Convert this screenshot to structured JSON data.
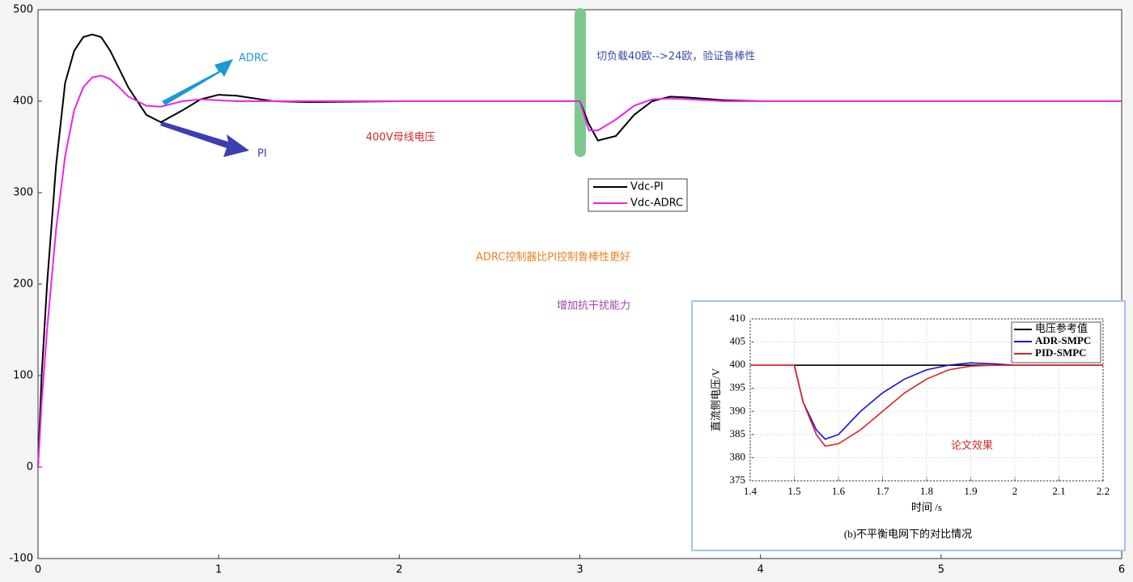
{
  "chart_data": [
    {
      "type": "line",
      "x": [
        0,
        0.02,
        0.05,
        0.1,
        0.15,
        0.2,
        0.25,
        0.3,
        0.35,
        0.4,
        0.45,
        0.5,
        0.6,
        0.68,
        0.8,
        0.9,
        1.0,
        1.1,
        1.2,
        1.3,
        1.5,
        2,
        2.5,
        3,
        3.05,
        3.1,
        3.2,
        3.3,
        3.4,
        3.5,
        3.6,
        3.8,
        4,
        5,
        6
      ],
      "series": [
        {
          "name": "Vdc-PI",
          "color": "#000000",
          "values": [
            0,
            100,
            200,
            330,
            420,
            455,
            470,
            473,
            470,
            455,
            435,
            415,
            385,
            377,
            390,
            402,
            407,
            406,
            403,
            400,
            399,
            400,
            400,
            400,
            375,
            357,
            362,
            385,
            400,
            405,
            404,
            401,
            400,
            400,
            400
          ]
        },
        {
          "name": "Vdc-ADRC",
          "color": "#ee22ee",
          "values": [
            0,
            70,
            150,
            260,
            340,
            390,
            415,
            426,
            428,
            424,
            415,
            405,
            395,
            394,
            400,
            402,
            401,
            400,
            400,
            400,
            400,
            400,
            400,
            400,
            368,
            368,
            380,
            395,
            402,
            403,
            402,
            400,
            400,
            400,
            400
          ]
        }
      ],
      "xlim": [
        0,
        6
      ],
      "ylim": [
        -100,
        500
      ],
      "xticks": [
        0,
        1,
        2,
        3,
        4,
        5,
        6
      ],
      "yticks": [
        -100,
        0,
        100,
        200,
        300,
        400,
        500
      ],
      "annotations": [
        "ADRC",
        "PI",
        "400V母线电压",
        "切负载40欧-->24欧，验证鲁棒性",
        "ADRC控制器比PI控制鲁棒性更好",
        "增加抗干扰能力"
      ]
    },
    {
      "type": "line",
      "x": [
        1.4,
        1.5,
        1.52,
        1.55,
        1.57,
        1.6,
        1.65,
        1.7,
        1.75,
        1.8,
        1.85,
        1.9,
        1.95,
        2,
        2.1,
        2.2
      ],
      "series": [
        {
          "name": "电压参考值",
          "color": "#000000",
          "values": [
            null,
            400,
            400,
            400,
            400,
            400,
            400,
            400,
            400,
            400,
            400,
            400,
            400,
            400,
            400,
            400
          ]
        },
        {
          "name": "ADR-SMPC",
          "color": "#1010dd",
          "values": [
            400,
            400,
            392,
            386,
            384,
            385,
            390,
            394,
            397,
            399,
            400,
            400.5,
            400.3,
            400,
            400,
            400
          ]
        },
        {
          "name": "PID-SMPC",
          "color": "#e02020",
          "values": [
            400,
            400,
            392,
            385,
            382.5,
            383,
            386,
            390,
            394,
            397,
            399,
            399.8,
            400,
            400,
            400,
            400
          ]
        }
      ],
      "xlim": [
        1.4,
        2.2
      ],
      "ylim": [
        375,
        410
      ],
      "xticks": [
        1.4,
        1.5,
        1.6,
        1.7,
        1.8,
        1.9,
        2,
        2.1,
        2.2
      ],
      "yticks": [
        375,
        380,
        385,
        390,
        395,
        400,
        405,
        410
      ],
      "xlabel": "时间 /s",
      "ylabel": "直流侧电压/V",
      "caption": "(b)不平衡电网下的对比情况",
      "annotations": [
        "论文效果"
      ]
    }
  ]
}
